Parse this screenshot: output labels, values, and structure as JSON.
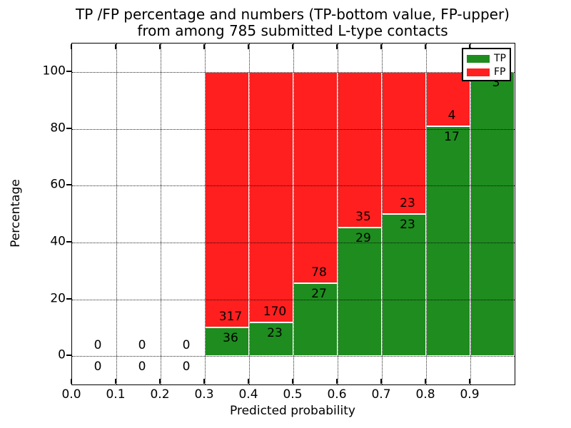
{
  "title": {
    "line1": "TP /FP percentage and numbers (TP-bottom value, FP-upper)",
    "line2": "from among 785 submitted L-type contacts"
  },
  "axes": {
    "xlabel": "Predicted probability",
    "ylabel": "Percentage",
    "x_tick_labels": [
      "0.0",
      "0.1",
      "0.2",
      "0.3",
      "0.4",
      "0.5",
      "0.6",
      "0.7",
      "0.8",
      "0.9"
    ],
    "x_tick_values": [
      0.0,
      0.1,
      0.2,
      0.3,
      0.4,
      0.5,
      0.6,
      0.7,
      0.8,
      0.9
    ],
    "y_tick_labels": [
      "0",
      "20",
      "40",
      "60",
      "80",
      "100"
    ],
    "y_tick_values": [
      0,
      20,
      40,
      60,
      80,
      100
    ],
    "grid_style": "dotted",
    "grid_color": "#000000"
  },
  "legend": {
    "position": "upper right",
    "items": [
      {
        "label": "TP",
        "color": "#1e8c1e"
      },
      {
        "label": "FP",
        "color": "#ff1f1f"
      }
    ]
  },
  "chart_data": {
    "type": "bar",
    "stacked": true,
    "normalization": "each non-empty bar scaled to total 100%",
    "title": "TP /FP percentage and numbers (TP-bottom value, FP-upper) from among 785 submitted L-type contacts",
    "xlabel": "Predicted probability",
    "ylabel": "Percentage",
    "xlim": [
      0.0,
      1.0
    ],
    "ylim": [
      -10,
      110
    ],
    "bin_width": 0.1,
    "total_contacts": 785,
    "bins": [
      {
        "x_start": 0.0,
        "tp": 0,
        "fp": 0
      },
      {
        "x_start": 0.1,
        "tp": 0,
        "fp": 0
      },
      {
        "x_start": 0.2,
        "tp": 0,
        "fp": 0
      },
      {
        "x_start": 0.3,
        "tp": 36,
        "fp": 317
      },
      {
        "x_start": 0.4,
        "tp": 23,
        "fp": 170
      },
      {
        "x_start": 0.5,
        "tp": 27,
        "fp": 78
      },
      {
        "x_start": 0.6,
        "tp": 29,
        "fp": 35
      },
      {
        "x_start": 0.7,
        "tp": 23,
        "fp": 23
      },
      {
        "x_start": 0.8,
        "tp": 17,
        "fp": 4
      },
      {
        "x_start": 0.9,
        "tp": 3,
        "fp": 0
      }
    ],
    "series": [
      {
        "name": "TP",
        "color": "#1e8c1e",
        "values": [
          0,
          0,
          0,
          36,
          23,
          27,
          29,
          23,
          17,
          3
        ]
      },
      {
        "name": "FP",
        "color": "#ff1f1f",
        "values": [
          0,
          0,
          0,
          317,
          170,
          78,
          35,
          23,
          4,
          0
        ]
      }
    ],
    "legend_position": "upper right"
  }
}
